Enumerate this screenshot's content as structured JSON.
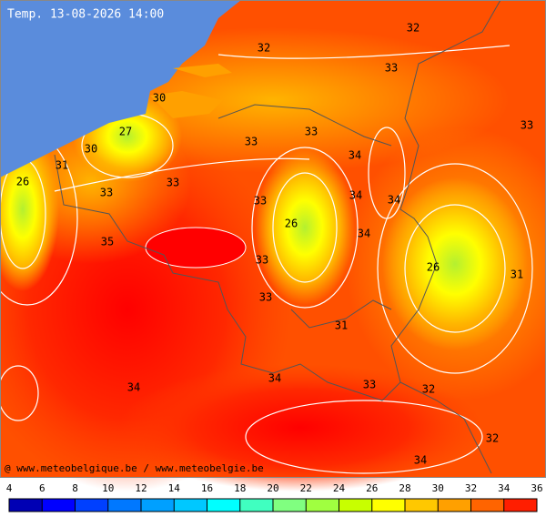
{
  "title": "Temp. 13-08-2026 14:00",
  "credit": "@ www.meteobelgique.be / www.meteobelgie.be",
  "contour_labels": [
    32,
    32,
    33,
    30,
    33,
    27,
    33,
    33,
    30,
    34,
    31,
    26,
    33,
    33,
    34,
    34,
    33,
    26,
    34,
    35,
    33,
    26,
    31,
    33,
    31,
    34,
    34,
    33,
    32,
    32,
    34
  ],
  "legend": {
    "ticks": [
      4,
      6,
      8,
      10,
      12,
      14,
      16,
      18,
      20,
      22,
      24,
      26,
      28,
      30,
      32,
      34,
      36
    ],
    "colors": [
      "#0000b4",
      "#0000ff",
      "#0040ff",
      "#0078ff",
      "#00a0ff",
      "#00c8ff",
      "#00ffff",
      "#40ffc0",
      "#80ff80",
      "#a0ff40",
      "#c8ff00",
      "#ffff00",
      "#ffc800",
      "#ffa000",
      "#ff6400",
      "#ff1e00"
    ]
  }
}
